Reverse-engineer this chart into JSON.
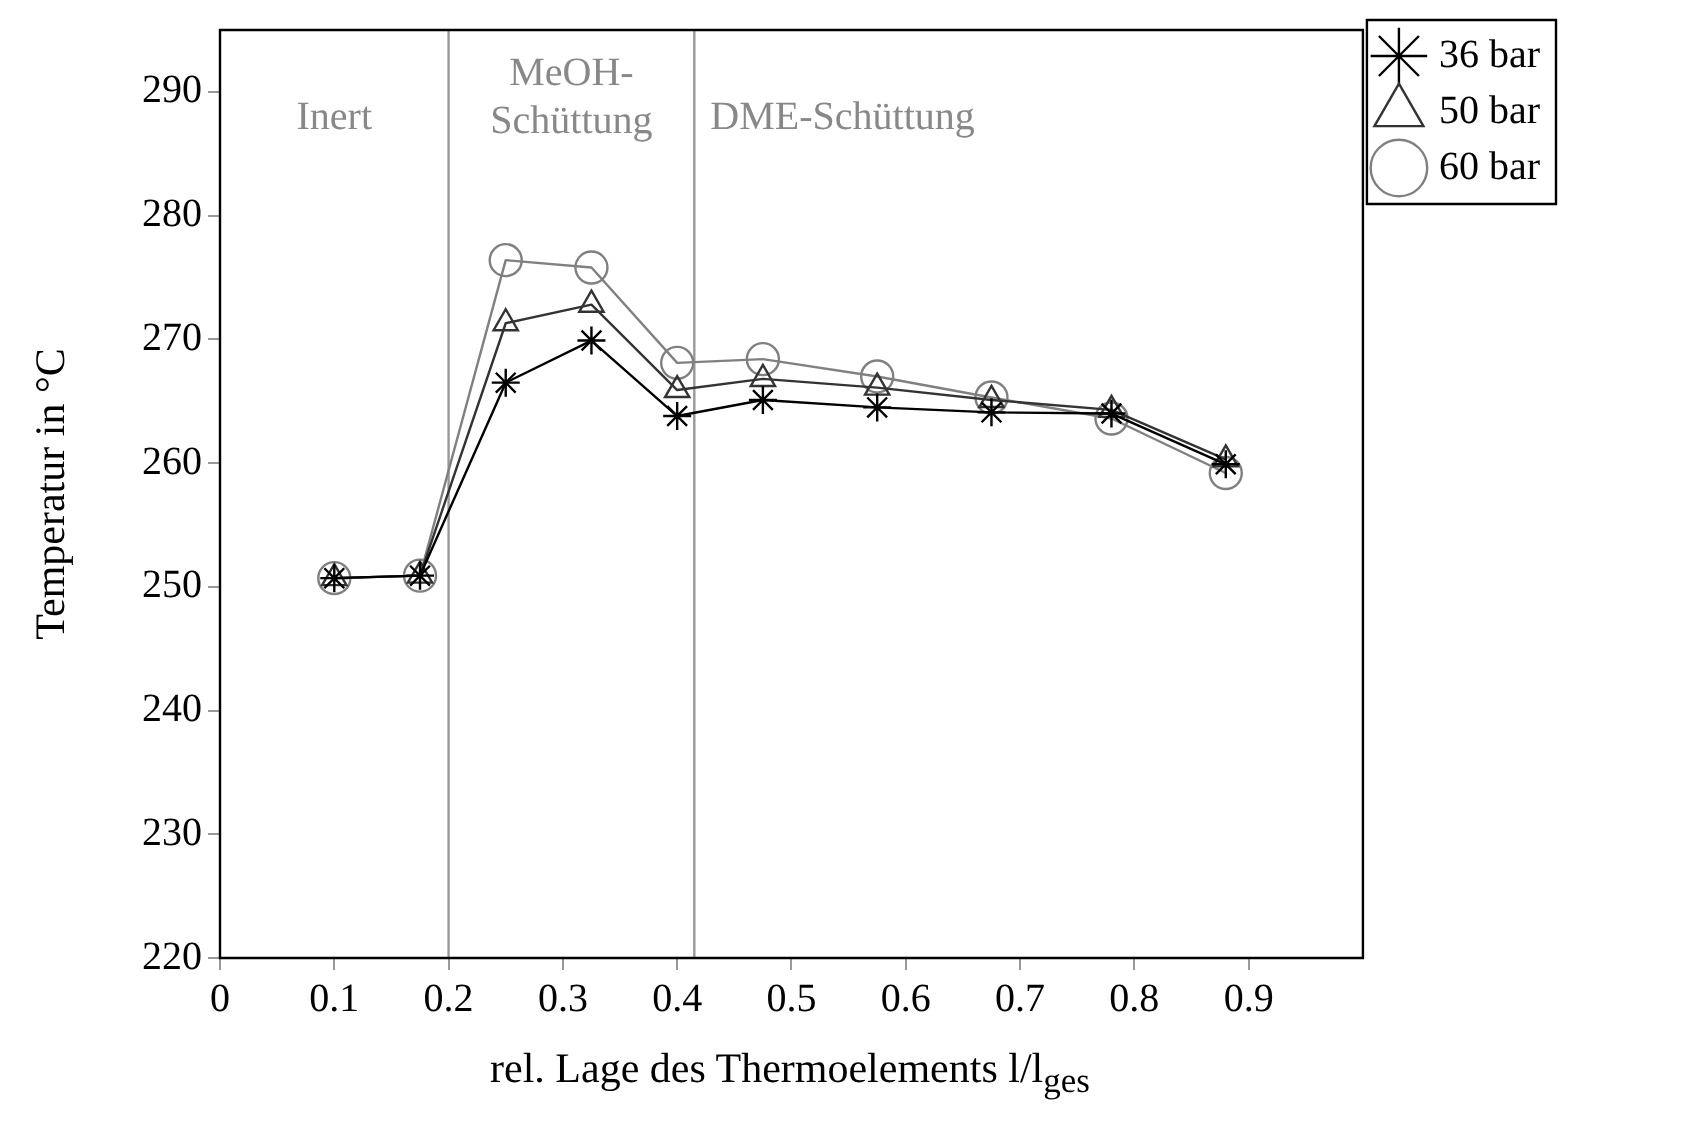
{
  "chart_data": {
    "type": "line",
    "xlabel": "rel. Lage des Thermoelements l/l$_{ges}$",
    "ylabel": "Temperatur in °C",
    "x": [
      0.1,
      0.175,
      0.25,
      0.325,
      0.4,
      0.475,
      0.575,
      0.675,
      0.78,
      0.88
    ],
    "series": [
      {
        "name": "36 bar",
        "color": "#000000",
        "marker": "cross",
        "values": [
          250.7,
          250.9,
          266.5,
          269.9,
          263.8,
          265.1,
          264.5,
          264.1,
          264.0,
          259.9
        ]
      },
      {
        "name": "50 bar",
        "color": "#333333",
        "marker": "triangle",
        "values": [
          250.7,
          250.9,
          271.3,
          272.8,
          265.9,
          266.8,
          266.1,
          265.1,
          264.3,
          260.3
        ]
      },
      {
        "name": "60 bar",
        "color": "#808080",
        "marker": "circle",
        "values": [
          250.7,
          250.9,
          276.4,
          275.8,
          268.1,
          268.4,
          267.0,
          265.3,
          263.6,
          259.2
        ]
      }
    ],
    "xlim": [
      0,
      1
    ],
    "xticks": [
      0,
      0.1,
      0.2,
      0.3,
      0.4,
      0.5,
      0.6,
      0.7,
      0.8,
      0.9
    ],
    "ylim": [
      220,
      295
    ],
    "yticks": [
      220,
      230,
      240,
      250,
      260,
      270,
      280,
      290
    ],
    "ref_lines": [
      {
        "axis": "x",
        "value": 0.2,
        "color": "#999999"
      },
      {
        "axis": "x",
        "value": 0.415,
        "color": "#999999"
      }
    ],
    "annotations": [
      "Inert",
      "MeOH-\nSchüttung",
      "DME-Schüttung"
    ],
    "grid": false,
    "legend": "top right",
    "line_style": "solid"
  }
}
